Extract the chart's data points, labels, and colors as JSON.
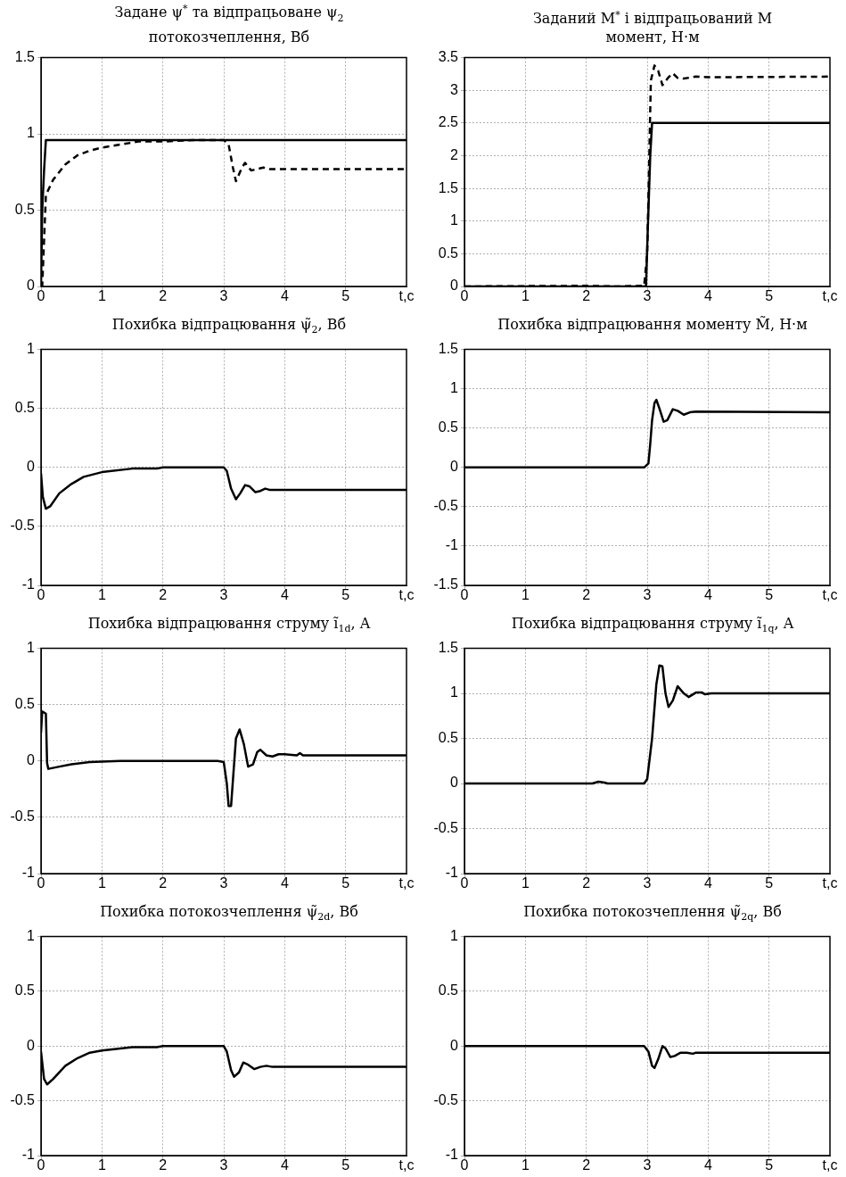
{
  "chart_data": [
    {
      "type": "line",
      "title": "Задане ψ$^{*}$ та відпрацьоване ψ$_{2}$ потокозчеплення, Вб",
      "xlabel": "t,c",
      "xlim": [
        0,
        6
      ],
      "xticks": [
        0,
        1,
        2,
        3,
        4,
        5
      ],
      "ylim": [
        0,
        1.5
      ],
      "yticks": [
        0,
        0.5,
        1,
        1.5
      ],
      "grid": true,
      "series": [
        {
          "color": "#000000",
          "line_style": "solid",
          "x": [
            0,
            0.02,
            0.05,
            0.08,
            6
          ],
          "values": [
            0,
            0.5,
            0.76,
            0.96,
            0.96
          ]
        },
        {
          "color": "#000000",
          "line_style": "dashed",
          "x": [
            0,
            0.02,
            0.05,
            0.08,
            0.2,
            0.4,
            0.6,
            0.8,
            1,
            1.3,
            1.6,
            2,
            2.5,
            3,
            3.08,
            3.15,
            3.2,
            3.3,
            3.35,
            3.45,
            3.55,
            3.65,
            3.75,
            4,
            6
          ],
          "values": [
            0,
            0,
            0.3,
            0.6,
            0.7,
            0.8,
            0.86,
            0.89,
            0.91,
            0.93,
            0.95,
            0.95,
            0.96,
            0.96,
            0.93,
            0.78,
            0.69,
            0.78,
            0.81,
            0.76,
            0.77,
            0.78,
            0.77,
            0.77,
            0.77
          ]
        }
      ]
    },
    {
      "type": "line",
      "title": "Заданий M$^{*}$ і відпрацьований M момент, Н·м",
      "xlabel": "t,c",
      "xlim": [
        0,
        6
      ],
      "xticks": [
        0,
        1,
        2,
        3,
        4,
        5
      ],
      "ylim": [
        0,
        3.5
      ],
      "yticks": [
        0,
        0.5,
        1,
        1.5,
        2,
        2.5,
        3,
        3.5
      ],
      "grid": true,
      "series": [
        {
          "color": "#000000",
          "line_style": "solid",
          "x": [
            0,
            2.98,
            3,
            3.05,
            3.08,
            6
          ],
          "values": [
            0,
            0,
            0.6,
            2,
            2.5,
            2.5
          ]
        },
        {
          "color": "#000000",
          "line_style": "dashed",
          "x": [
            0,
            2,
            2.5,
            2.95,
            3,
            3.03,
            3.06,
            3.12,
            3.18,
            3.25,
            3.35,
            3.42,
            3.5,
            3.6,
            3.8,
            4,
            6
          ],
          "values": [
            0,
            0.01,
            0,
            0.01,
            0.5,
            1.8,
            3.15,
            3.38,
            3.3,
            3.08,
            3.2,
            3.26,
            3.19,
            3.18,
            3.21,
            3.2,
            3.21
          ]
        }
      ]
    },
    {
      "type": "line",
      "title": "Похибка відпрацювання ψ̃$_{2}$, Вб",
      "xlabel": "t,c",
      "xlim": [
        0,
        6
      ],
      "xticks": [
        0,
        1,
        2,
        3,
        4,
        5
      ],
      "ylim": [
        -1,
        1
      ],
      "yticks": [
        -1,
        -0.5,
        0,
        0.5,
        1
      ],
      "grid": true,
      "series": [
        {
          "color": "#000000",
          "line_style": "solid",
          "x": [
            0,
            0.03,
            0.08,
            0.15,
            0.3,
            0.5,
            0.7,
            1,
            1.5,
            1.9,
            2,
            3,
            3.05,
            3.12,
            3.2,
            3.27,
            3.35,
            3.42,
            3.52,
            3.6,
            3.68,
            3.75,
            6
          ],
          "values": [
            -0.05,
            -0.25,
            -0.35,
            -0.33,
            -0.22,
            -0.14,
            -0.08,
            -0.04,
            -0.01,
            -0.01,
            0,
            0,
            -0.03,
            -0.18,
            -0.27,
            -0.22,
            -0.15,
            -0.16,
            -0.21,
            -0.2,
            -0.18,
            -0.19,
            -0.19
          ]
        }
      ]
    },
    {
      "type": "line",
      "title": "Похибка відпрацювання моменту M̃, Н·м",
      "xlabel": "t,c",
      "xlim": [
        0,
        6
      ],
      "xticks": [
        0,
        1,
        2,
        3,
        4,
        5
      ],
      "ylim": [
        -1.5,
        1.5
      ],
      "yticks": [
        -1.5,
        -1,
        -0.5,
        0,
        0.5,
        1,
        1.5
      ],
      "grid": true,
      "series": [
        {
          "color": "#000000",
          "line_style": "solid",
          "x": [
            0,
            2.95,
            3.02,
            3.05,
            3.08,
            3.12,
            3.15,
            3.2,
            3.27,
            3.33,
            3.42,
            3.5,
            3.6,
            3.7,
            3.8,
            6
          ],
          "values": [
            0,
            0,
            0.05,
            0.3,
            0.6,
            0.82,
            0.86,
            0.75,
            0.58,
            0.6,
            0.74,
            0.72,
            0.67,
            0.7,
            0.71,
            0.7
          ]
        }
      ]
    },
    {
      "type": "line",
      "title": "Похибка відпрацювання струму ĩ$_{1d}$, A",
      "xlabel": "t,c",
      "xlim": [
        0,
        6
      ],
      "xticks": [
        0,
        1,
        2,
        3,
        4,
        5
      ],
      "ylim": [
        -1,
        1
      ],
      "yticks": [
        -1,
        -0.5,
        0,
        0.5,
        1
      ],
      "grid": true,
      "series": [
        {
          "color": "#000000",
          "line_style": "solid",
          "x": [
            0,
            0.02,
            0.08,
            0.1,
            0.12,
            0.3,
            0.5,
            0.8,
            1.3,
            2.9,
            3,
            3.05,
            3.08,
            3.12,
            3.16,
            3.2,
            3.26,
            3.33,
            3.4,
            3.48,
            3.55,
            3.6,
            3.7,
            3.8,
            3.9,
            4,
            4.2,
            4.25,
            4.3,
            6
          ],
          "values": [
            0.25,
            0.44,
            0.42,
            -0.02,
            -0.07,
            -0.05,
            -0.03,
            -0.01,
            0,
            0,
            -0.01,
            -0.2,
            -0.4,
            -0.4,
            -0.1,
            0.2,
            0.28,
            0.15,
            -0.05,
            -0.03,
            0.08,
            0.1,
            0.05,
            0.04,
            0.06,
            0.06,
            0.05,
            0.07,
            0.05,
            0.05
          ]
        }
      ]
    },
    {
      "type": "line",
      "title": "Похибка відпрацювання  струму ĩ$_{1q}$, A",
      "xlabel": "t,c",
      "xlim": [
        0,
        6
      ],
      "xticks": [
        0,
        1,
        2,
        3,
        4,
        5
      ],
      "ylim": [
        -1,
        1.5
      ],
      "yticks": [
        -1,
        -0.5,
        0,
        0.5,
        1,
        1.5
      ],
      "grid": true,
      "series": [
        {
          "color": "#000000",
          "line_style": "solid",
          "x": [
            0,
            2.1,
            2.2,
            2.3,
            2.35,
            2.95,
            3,
            3.08,
            3.15,
            3.2,
            3.25,
            3.3,
            3.35,
            3.42,
            3.5,
            3.6,
            3.68,
            3.8,
            3.9,
            3.95,
            4.05,
            6
          ],
          "values": [
            0,
            0,
            0.02,
            0.01,
            0,
            0,
            0.05,
            0.5,
            1.1,
            1.31,
            1.3,
            1,
            0.85,
            0.92,
            1.08,
            1,
            0.96,
            1.01,
            1.01,
            0.99,
            1,
            1
          ]
        }
      ]
    },
    {
      "type": "line",
      "title": "Похибка потокозчеплення ψ̃$_{2d}$, Вб",
      "xlabel": "t,c",
      "xlim": [
        0,
        6
      ],
      "xticks": [
        0,
        1,
        2,
        3,
        4,
        5
      ],
      "ylim": [
        -1,
        1
      ],
      "yticks": [
        -1,
        -0.5,
        0,
        0.5,
        1
      ],
      "grid": true,
      "series": [
        {
          "color": "#000000",
          "line_style": "solid",
          "x": [
            0,
            0.05,
            0.1,
            0.2,
            0.4,
            0.6,
            0.8,
            1,
            1.5,
            1.9,
            2,
            3,
            3.05,
            3.12,
            3.17,
            3.25,
            3.32,
            3.4,
            3.5,
            3.6,
            3.7,
            3.8,
            6
          ],
          "values": [
            -0.05,
            -0.3,
            -0.35,
            -0.3,
            -0.18,
            -0.11,
            -0.06,
            -0.04,
            -0.01,
            -0.01,
            0,
            0,
            -0.05,
            -0.22,
            -0.28,
            -0.24,
            -0.15,
            -0.17,
            -0.21,
            -0.19,
            -0.18,
            -0.19,
            -0.19
          ]
        }
      ]
    },
    {
      "type": "line",
      "title": "Похибка потокозчеплення ψ̃$_{2q}$, Вб",
      "xlabel": "t,c",
      "xlim": [
        0,
        6
      ],
      "xticks": [
        0,
        1,
        2,
        3,
        4,
        5
      ],
      "ylim": [
        -1,
        1
      ],
      "yticks": [
        -1,
        -0.5,
        0,
        0.5,
        1
      ],
      "grid": true,
      "series": [
        {
          "color": "#000000",
          "line_style": "solid",
          "x": [
            0,
            2.95,
            3.02,
            3.08,
            3.12,
            3.18,
            3.25,
            3.3,
            3.38,
            3.45,
            3.55,
            3.65,
            3.75,
            3.8,
            6
          ],
          "values": [
            0,
            0,
            -0.05,
            -0.18,
            -0.2,
            -0.12,
            0,
            -0.02,
            -0.1,
            -0.09,
            -0.06,
            -0.06,
            -0.07,
            -0.06,
            -0.06
          ]
        }
      ]
    }
  ]
}
